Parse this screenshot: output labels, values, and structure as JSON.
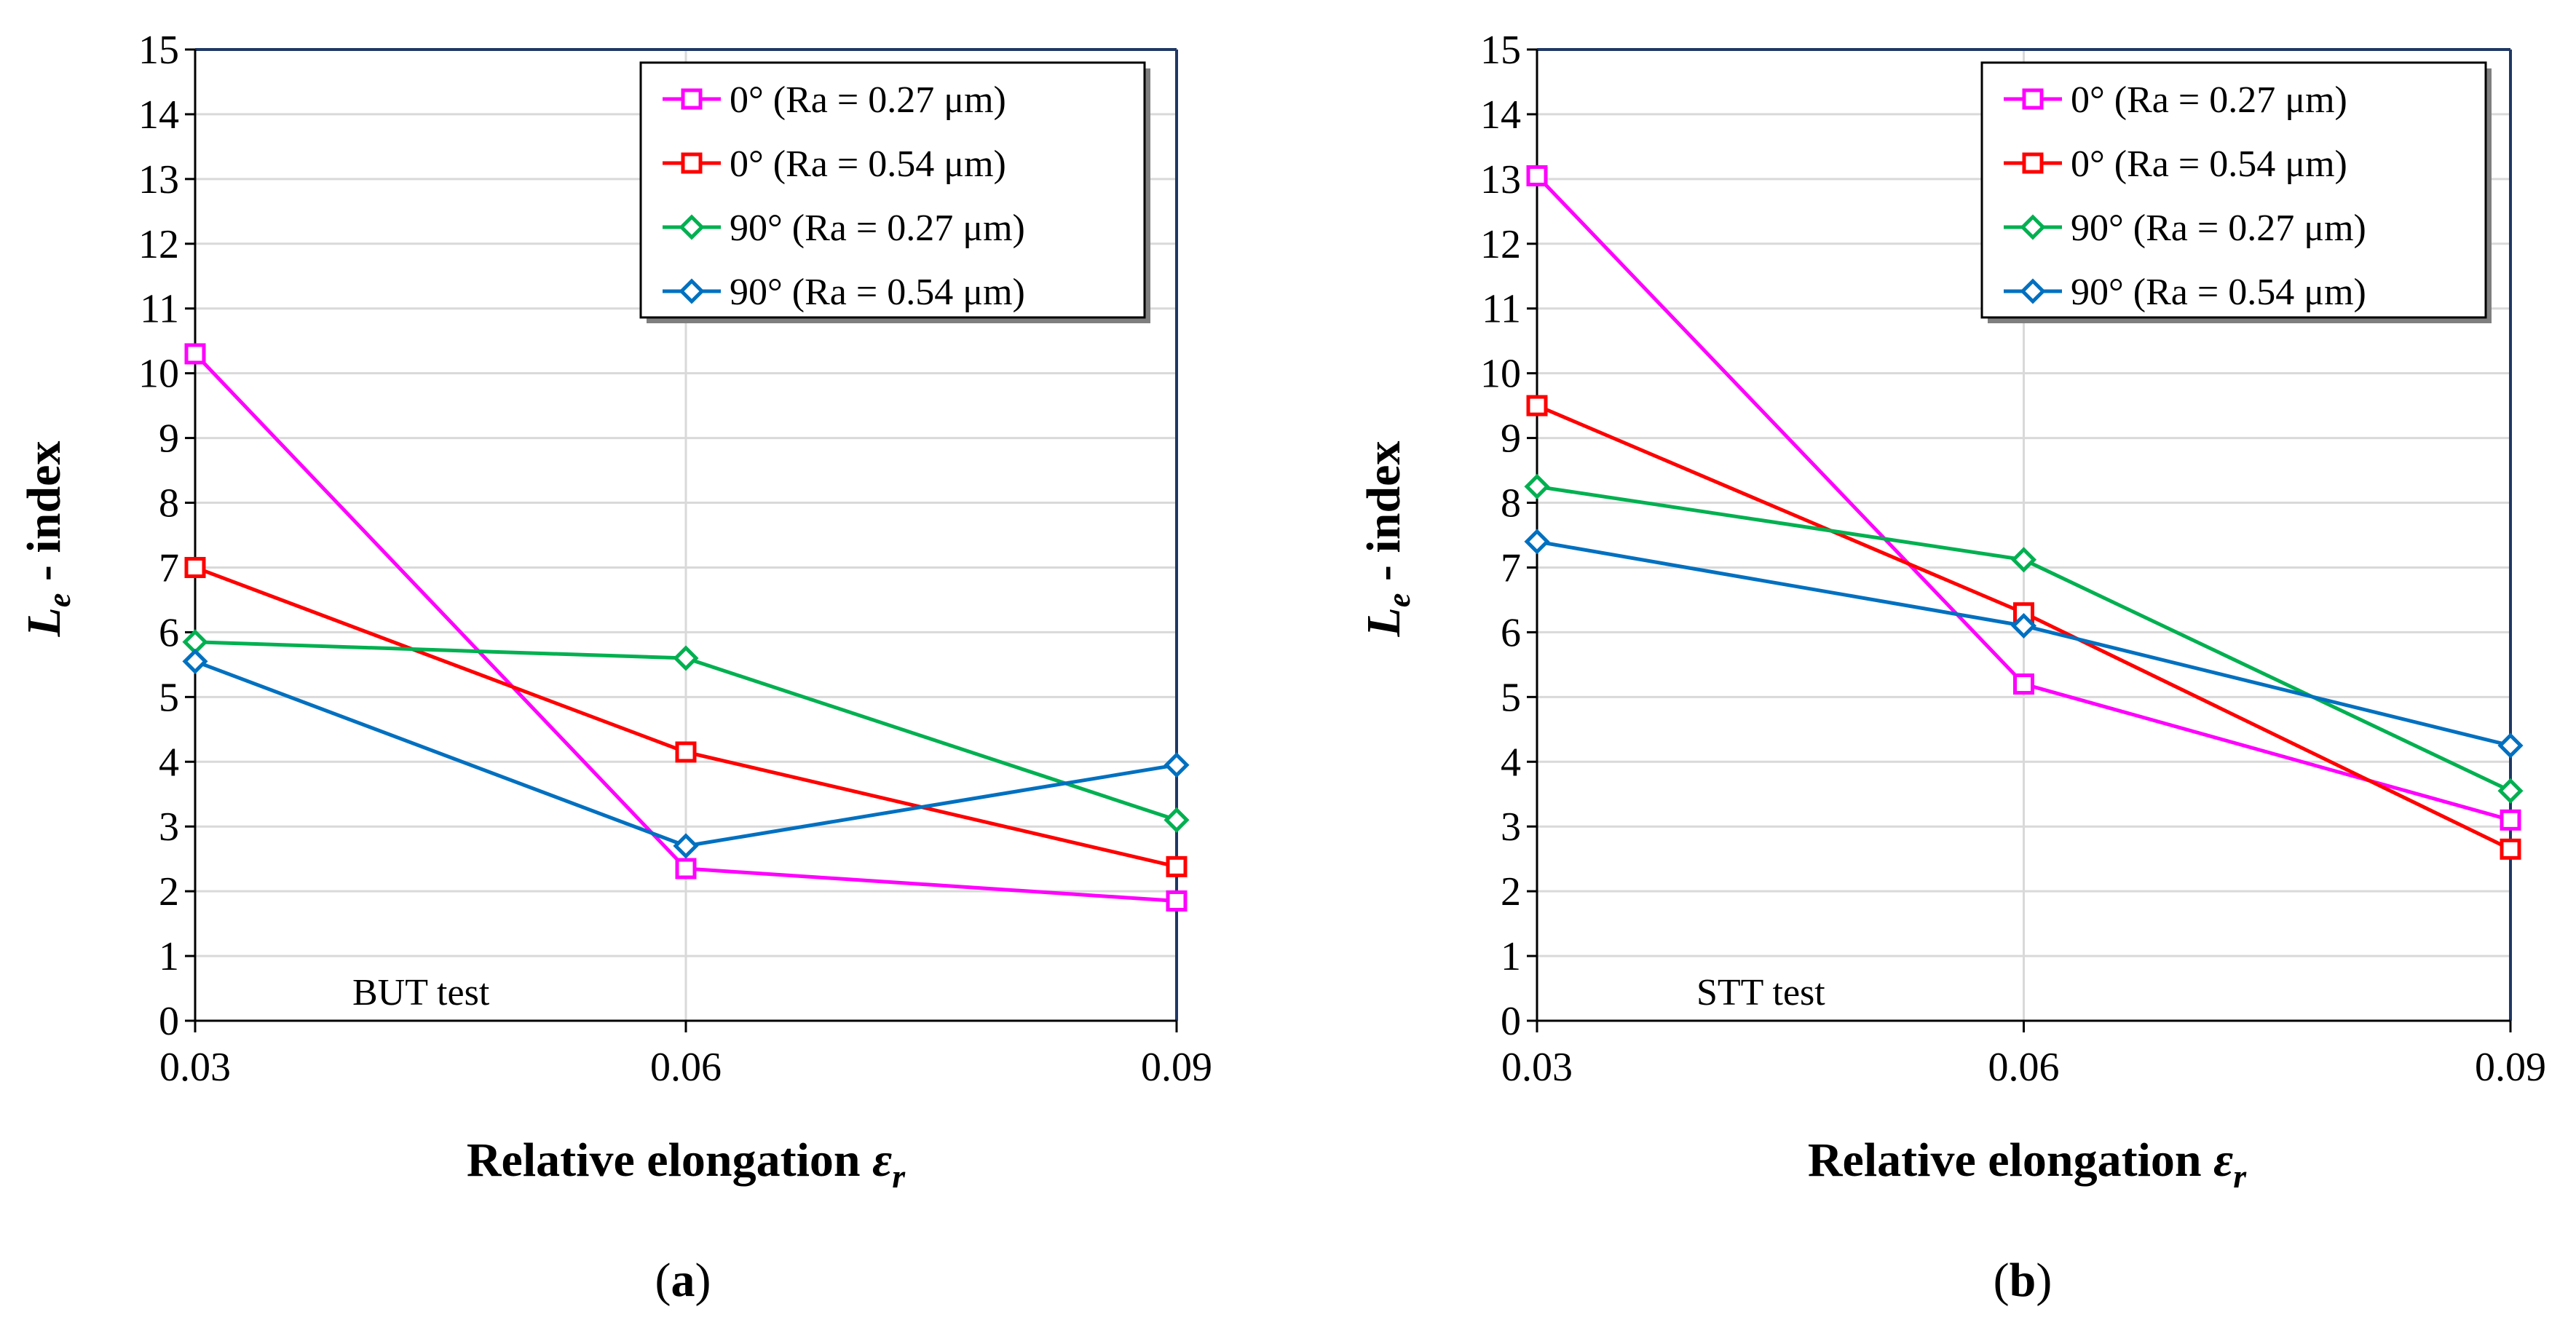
{
  "colors": {
    "magenta": "#ff00ff",
    "red": "#ff0000",
    "green": "#00b050",
    "blue": "#0070c0",
    "frame": "#1f3864",
    "grid": "#d9d9d9"
  },
  "chart_data": [
    {
      "type": "line",
      "panel": "(a)",
      "caption_open": "(",
      "caption_letter": "a",
      "caption_close": ")",
      "annotation": "BUT test",
      "ylabel_main": "L",
      "ylabel_sub": "e",
      "ylabel_rest": " - index",
      "xlabel_main": "Relative elongation ",
      "xlabel_sym": "ε",
      "xlabel_sub": "r",
      "categories": [
        "0.03",
        "0.06",
        "0.09"
      ],
      "ylim": [
        0,
        15
      ],
      "yticks": [
        "0",
        "1",
        "2",
        "3",
        "4",
        "5",
        "6",
        "7",
        "8",
        "9",
        "10",
        "11",
        "12",
        "13",
        "14",
        "15"
      ],
      "grid": true,
      "legend_position": "top-right",
      "series": [
        {
          "name": "0° (Ra = 0.27 μm)",
          "color": "#ff00ff",
          "marker": "square",
          "values": [
            10.3,
            2.35,
            1.85
          ]
        },
        {
          "name": "0° (Ra = 0.54 μm)",
          "color": "#ff0000",
          "marker": "square",
          "values": [
            7.0,
            4.15,
            2.38
          ]
        },
        {
          "name": "90° (Ra = 0.27 μm)",
          "color": "#00b050",
          "marker": "diamond",
          "values": [
            5.85,
            5.6,
            3.1
          ]
        },
        {
          "name": "90° (Ra = 0.54 μm)",
          "color": "#0070c0",
          "marker": "diamond",
          "values": [
            5.55,
            2.7,
            3.95
          ]
        }
      ]
    },
    {
      "type": "line",
      "panel": "(b)",
      "caption_open": "(",
      "caption_letter": "b",
      "caption_close": ")",
      "annotation": "STT test",
      "ylabel_main": "L",
      "ylabel_sub": "e",
      "ylabel_rest": " - index",
      "xlabel_main": "Relative elongation ",
      "xlabel_sym": "ε",
      "xlabel_sub": "r",
      "categories": [
        "0.03",
        "0.06",
        "0.09"
      ],
      "ylim": [
        0,
        15
      ],
      "yticks": [
        "0",
        "1",
        "2",
        "3",
        "4",
        "5",
        "6",
        "7",
        "8",
        "9",
        "10",
        "11",
        "12",
        "13",
        "14",
        "15"
      ],
      "grid": true,
      "legend_position": "top-right",
      "series": [
        {
          "name": "0° (Ra = 0.27 μm)",
          "color": "#ff00ff",
          "marker": "square",
          "values": [
            13.05,
            5.2,
            3.1
          ]
        },
        {
          "name": "0° (Ra = 0.54 μm)",
          "color": "#ff0000",
          "marker": "square",
          "values": [
            9.5,
            6.3,
            2.65
          ]
        },
        {
          "name": "90° (Ra = 0.27 μm)",
          "color": "#00b050",
          "marker": "diamond",
          "values": [
            8.25,
            7.12,
            3.55
          ]
        },
        {
          "name": "90° (Ra = 0.54 μm)",
          "color": "#0070c0",
          "marker": "diamond",
          "values": [
            7.4,
            6.1,
            4.25
          ]
        }
      ]
    }
  ]
}
